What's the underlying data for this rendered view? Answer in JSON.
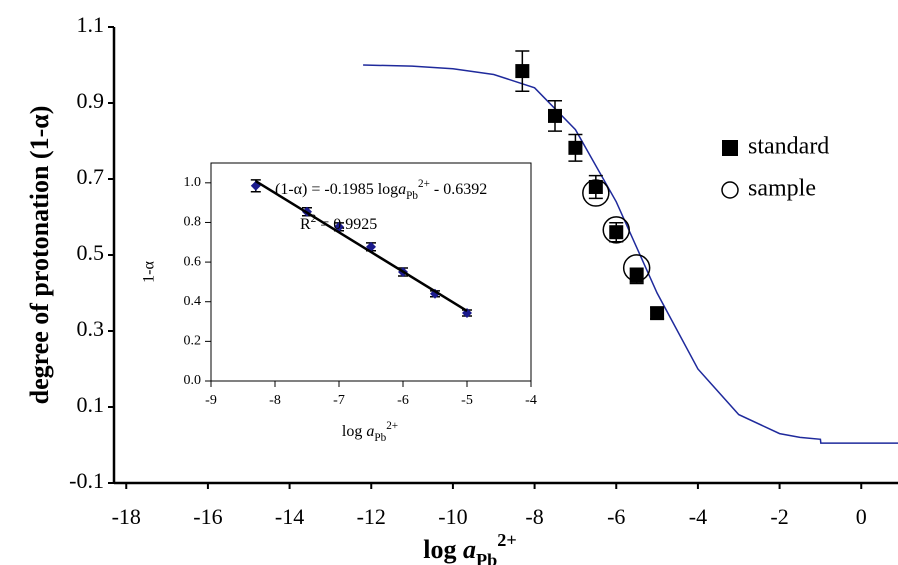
{
  "chart_data": [
    {
      "type": "line",
      "x_label": {
        "text": "log ",
        "var": "a",
        "sub": "Pb",
        "sup": "2+"
      },
      "y_label": "degree of protonation (1-α)",
      "xlim": [
        -18.3,
        0.9
      ],
      "ylim": [
        -0.1,
        1.1
      ],
      "xticks": [
        -18,
        -16,
        -14,
        -12,
        -10,
        -8,
        -6,
        -4,
        -2,
        0
      ],
      "yticks": [
        -0.1,
        0.1,
        0.3,
        0.5,
        0.7,
        0.9,
        1.1
      ],
      "legend": "upper right",
      "series": [
        {
          "marker": "line",
          "color": "#1f2a9c",
          "x": [
            -12.2,
            -11,
            -10,
            -9,
            -8,
            -7,
            -6,
            -5,
            -4,
            -3,
            -2,
            -1.5,
            -1,
            -0.99,
            0,
            0.9
          ],
          "values": [
            1.0,
            0.997,
            0.99,
            0.975,
            0.94,
            0.83,
            0.64,
            0.4,
            0.2,
            0.08,
            0.03,
            0.02,
            0.015,
            0.005,
            0.005,
            0.005
          ]
        },
        {
          "name": "standard",
          "marker": "square",
          "color": "#000000",
          "x": [
            -8.3,
            -7.5,
            -7,
            -6.5,
            -6,
            -5.5,
            -5
          ],
          "values": [
            0.984,
            0.866,
            0.782,
            0.679,
            0.56,
            0.445,
            0.347
          ],
          "errors": [
            0.053,
            0.04,
            0.035,
            0.03,
            0.025,
            0.02,
            0.015
          ]
        },
        {
          "name": "sample",
          "marker": "circle",
          "color": "#000000",
          "x": [
            -6.5,
            -6,
            -5.5
          ],
          "values": [
            0.663,
            0.566,
            0.466
          ]
        }
      ]
    },
    {
      "type": "scatter",
      "x_label": {
        "text": "log ",
        "var": "a",
        "sub": "Pb",
        "sup": "2+"
      },
      "y_label": "1-α",
      "xlim": [
        -9,
        -4
      ],
      "ylim": [
        0,
        1.1
      ],
      "xticks": [
        -9,
        -8,
        -7,
        -6,
        -5,
        -4
      ],
      "yticks": [
        {
          "value": 0,
          "label": "0.0"
        },
        0.2,
        0.4,
        0.6,
        0.8,
        {
          "value": 1,
          "label": "1.0"
        }
      ],
      "annotations": [
        {
          "text": "(1-α) = -0.1985 log",
          "var": "a",
          "sub": "Pb",
          "sup": "2+",
          "tail": " - 0.6392"
        },
        {
          "text": "R",
          "sup": "2",
          "tail": " = 0.9925"
        }
      ],
      "series": [
        {
          "marker": "diamond",
          "color": "#1a1a8c",
          "x": [
            -8.3,
            -7.5,
            -7,
            -6.5,
            -6,
            -5.5,
            -5
          ],
          "values": [
            0.985,
            0.854,
            0.778,
            0.677,
            0.55,
            0.44,
            0.343
          ],
          "errors": [
            0.03,
            0.02,
            0.02,
            0.02,
            0.02,
            0.015,
            0.015
          ]
        },
        {
          "marker": "line",
          "color": "#000000",
          "x": [
            -8.3,
            -5
          ],
          "values": [
            1.0084,
            0.3533
          ]
        }
      ]
    }
  ]
}
